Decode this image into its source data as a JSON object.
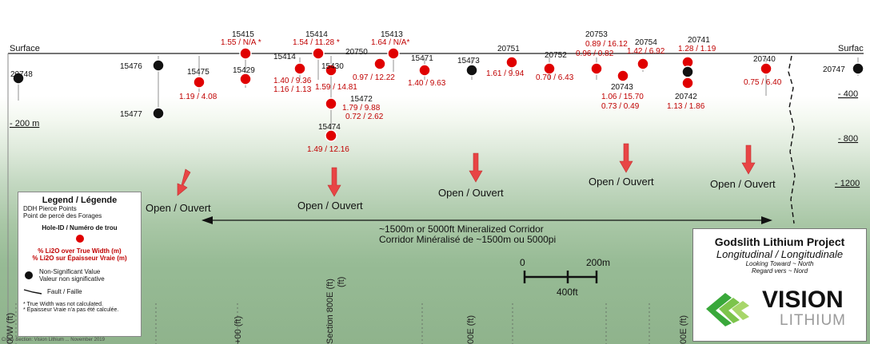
{
  "surface_label_left": "Surface",
  "surface_label_right": "Surfac",
  "depth_labels_left": [
    "- 200 m"
  ],
  "depth_labels_right": [
    "- 400",
    "- 800",
    "- 1200"
  ],
  "holes": [
    {
      "id": "15415",
      "values": [
        "1.55 / N/A *"
      ],
      "significant": true
    },
    {
      "id": "15476",
      "values": [],
      "significant": false
    },
    {
      "id": "15477",
      "values": [],
      "significant": false
    },
    {
      "id": "15475",
      "values": [
        "1.19 / 4.08"
      ],
      "significant": true
    },
    {
      "id": "15429",
      "values": [],
      "significant": true
    },
    {
      "id": "20748",
      "values": [],
      "significant": false
    },
    {
      "id": "15414",
      "values": [
        "1.54 / 11.28 *"
      ],
      "significant": true
    },
    {
      "id": "20749",
      "values": [
        "1.40 / 9.36",
        "1.16 / 1.13"
      ],
      "significant": true
    },
    {
      "id": "15430",
      "values": [
        "1.59 / 14.81"
      ],
      "significant": true
    },
    {
      "id": "15472",
      "values": [
        "1.79 / 9.88",
        "0.72 / 2.62"
      ],
      "significant": true
    },
    {
      "id": "15474",
      "values": [
        "1.49 / 12.16"
      ],
      "significant": true
    },
    {
      "id": "20750",
      "values": [
        "0.97 / 12.22"
      ],
      "significant": true
    },
    {
      "id": "15413",
      "values": [
        "1.64 / N/A*"
      ],
      "significant": true
    },
    {
      "id": "15471",
      "values": [
        "1.40 / 9.63"
      ],
      "significant": true
    },
    {
      "id": "15473",
      "values": [],
      "significant": false
    },
    {
      "id": "20751",
      "values": [
        "1.61 / 9.94"
      ],
      "significant": true
    },
    {
      "id": "20752",
      "values": [
        "0.70 / 6.43"
      ],
      "significant": true
    },
    {
      "id": "20753",
      "values": [
        "0.89 / 16.12",
        "0.96 / 0.82"
      ],
      "significant": true
    },
    {
      "id": "20754",
      "values": [
        "1.42 / 6.92"
      ],
      "significant": true
    },
    {
      "id": "20743",
      "values": [
        "1.06 / 15.70",
        "0.73 / 0.49"
      ],
      "significant": true
    },
    {
      "id": "20741",
      "values": [
        "1.28 / 1.19"
      ],
      "significant": true
    },
    {
      "id": "20742",
      "values": [
        "1.13 / 1.86"
      ],
      "significant": true
    },
    {
      "id": "20740",
      "values": [
        "0.75 / 6.40"
      ],
      "significant": true
    },
    {
      "id": "20747",
      "values": [],
      "significant": false
    }
  ],
  "open_label": "Open / Ouvert",
  "corridor_en": "~1500m or 5000ft Mineralized Corridor",
  "corridor_fr": "Corridor Minéralisé de ~1500m ou 5000pi",
  "scale": {
    "zero": "0",
    "metric": "200m",
    "imperial": "400ft"
  },
  "sections": [
    "00W (ft)",
    "+00 (ft)",
    "Section 800E (ft)",
    "00E (ft)",
    "00E (ft)"
  ],
  "legend": {
    "title": "Legend / Légende",
    "pierce_en": "DDH Pierce Points",
    "pierce_fr": "Point de percé des Forages",
    "hole_id": "Hole-ID / Numéro de trou",
    "li2o_en": "% Li2O over True Width (m)",
    "li2o_fr": "% Li2O sur Épaisseur Vraie (m)",
    "nonsig_en": "Non-Significant Value",
    "nonsig_fr": "Valeur non significative",
    "fault": "Fault / Faille",
    "note_en": "* True Width was not calculated.",
    "note_fr": "* Épaisseur Vraie n'a pas été calculée."
  },
  "title_block": {
    "project": "Godslith Lithium Project",
    "subtitle": "Longitudinal / Longitudinale",
    "look_en": "Looking Toward ~ North",
    "look_fr": "Regard vers ~ Nord",
    "logo_main": "VISION",
    "logo_sub": "LITHIUM"
  },
  "credit": "Cross Section: Vision Lithium ... November 2019",
  "colors": {
    "significant": "#e00000",
    "nonsignificant": "#111111",
    "arrow": "#e84545",
    "value_text": "#c00000"
  }
}
